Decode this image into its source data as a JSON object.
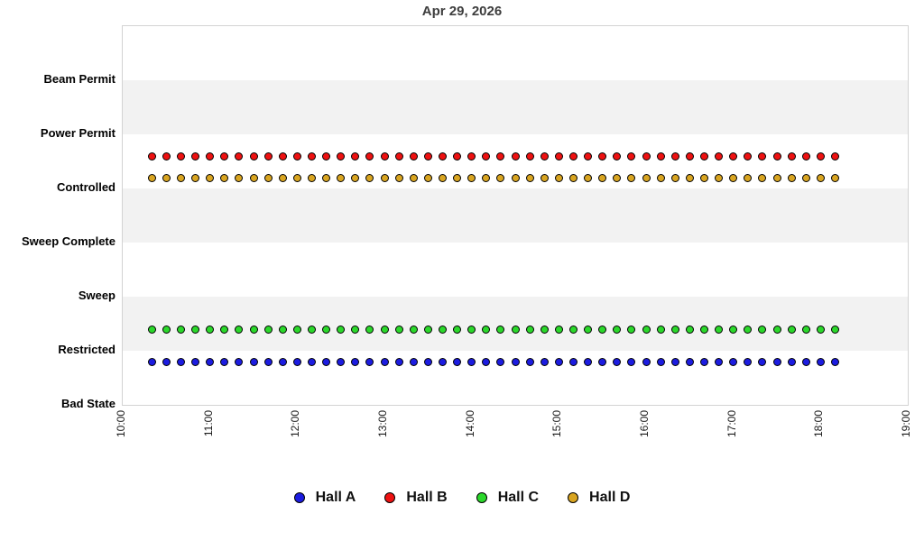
{
  "title": "Apr 29, 2026",
  "chart_data": {
    "type": "scatter",
    "title": "Apr 29, 2026",
    "x_axis": {
      "tick_labels": [
        "10:00",
        "11:00",
        "12:00",
        "13:00",
        "14:00",
        "15:00",
        "16:00",
        "17:00",
        "18:00",
        "19:00"
      ],
      "range_hours": [
        10,
        19
      ],
      "tick_label_rotation_degrees": 90
    },
    "y_axis": {
      "categories_bottom_to_top": [
        "Bad State",
        "Restricted",
        "Sweep",
        "Sweep Complete",
        "Controlled",
        "Power Permit",
        "Beam Permit"
      ],
      "range_units": [
        0,
        7
      ],
      "alternating_bands": true
    },
    "sampling": {
      "start_time": "10:20",
      "end_time": "18:10",
      "interval_minutes": 10,
      "points_per_series": 48
    },
    "series": [
      {
        "name": "Hall A",
        "color": "#1c1ce0",
        "state": "Restricted",
        "plot_level": 0.8
      },
      {
        "name": "Hall B",
        "color": "#ee1111",
        "state": "Power Permit",
        "plot_level": 4.6
      },
      {
        "name": "Hall C",
        "color": "#2bd82b",
        "state": "Restricted",
        "plot_level": 1.4
      },
      {
        "name": "Hall D",
        "color": "#d9a521",
        "state": "Controlled",
        "plot_level": 4.2
      }
    ],
    "legend": {
      "position": "bottom",
      "items": [
        "Hall A",
        "Hall B",
        "Hall C",
        "Hall D"
      ]
    },
    "style": {
      "band_color": "#f2f2f2",
      "border_color": "#d3d3d3",
      "background_color": "#ffffff",
      "title_color": "#3d3d3d"
    }
  }
}
